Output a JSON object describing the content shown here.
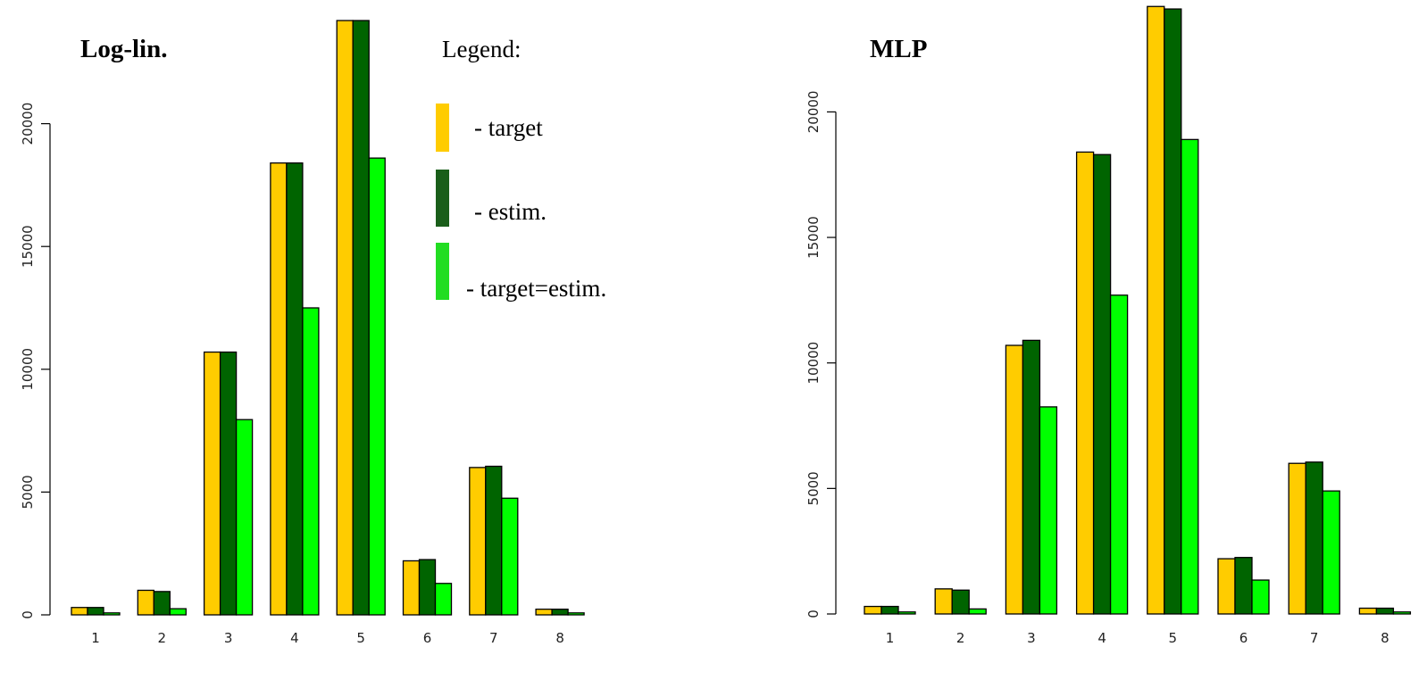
{
  "chart_data": [
    {
      "type": "bar",
      "title": "Log-lin.",
      "categories": [
        "1",
        "2",
        "3",
        "4",
        "5",
        "6",
        "7",
        "8"
      ],
      "series": [
        {
          "name": "target",
          "color": "#FFCC00",
          "values": [
            300,
            1000,
            10700,
            18400,
            24200,
            2200,
            6000,
            230
          ]
        },
        {
          "name": "estim.",
          "color": "#006400",
          "values": [
            300,
            950,
            10700,
            18400,
            24200,
            2250,
            6050,
            230
          ]
        },
        {
          "name": "target=estim.",
          "color": "#00FF00",
          "values": [
            80,
            250,
            7950,
            12500,
            18600,
            1280,
            4750,
            80
          ]
        }
      ],
      "ylim": [
        0,
        24000
      ],
      "yticks": [
        "0",
        "5000",
        "10000",
        "15000",
        "20000"
      ],
      "yticks_values": [
        0,
        5000,
        10000,
        15000,
        20000
      ],
      "legend": {
        "title": "Legend:",
        "items": [
          {
            "label": "- target",
            "color": "#FFCC00"
          },
          {
            "label": "- estim.",
            "color": "#1A5E1A"
          },
          {
            "label": "- target=estim.",
            "color": "#22DD22"
          }
        ]
      }
    },
    {
      "type": "bar",
      "title": "MLP",
      "categories": [
        "1",
        "2",
        "3",
        "4",
        "5",
        "6",
        "7",
        "8"
      ],
      "series": [
        {
          "name": "target",
          "color": "#FFCC00",
          "values": [
            300,
            1000,
            10700,
            18400,
            24200,
            2200,
            6000,
            230
          ]
        },
        {
          "name": "estim.",
          "color": "#006400",
          "values": [
            300,
            950,
            10900,
            18300,
            24100,
            2250,
            6050,
            230
          ]
        },
        {
          "name": "target=estim.",
          "color": "#00FF00",
          "values": [
            80,
            200,
            8250,
            12700,
            18900,
            1350,
            4900,
            80
          ]
        }
      ],
      "ylim": [
        0,
        24000
      ],
      "yticks": [
        "0",
        "5000",
        "10000",
        "15000",
        "20000"
      ],
      "yticks_values": [
        0,
        5000,
        10000,
        15000,
        20000
      ]
    }
  ]
}
